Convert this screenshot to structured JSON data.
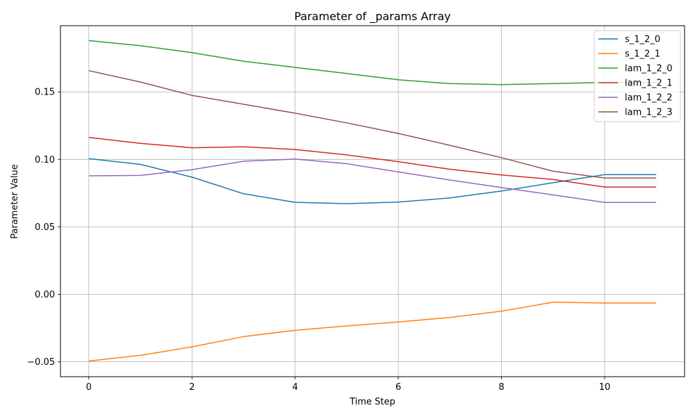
{
  "chart_data": {
    "type": "line",
    "title": "Parameter of _params Array",
    "xlabel": "Time Step",
    "ylabel": "Parameter Value",
    "xlim": [
      -0.55,
      11.55
    ],
    "ylim": [
      -0.061,
      0.199
    ],
    "x_ticks": [
      0,
      2,
      4,
      6,
      8,
      10
    ],
    "x_tick_labels": [
      "0",
      "2",
      "4",
      "6",
      "8",
      "10"
    ],
    "y_ticks": [
      -0.05,
      0.0,
      0.05,
      0.1,
      0.15
    ],
    "y_tick_labels": [
      "−0.05",
      "0.00",
      "0.05",
      "0.10",
      "0.15"
    ],
    "grid": true,
    "legend_position": "top-right",
    "x": [
      0,
      1,
      2,
      3,
      4,
      5,
      6,
      7,
      8,
      9,
      10,
      11
    ],
    "series": [
      {
        "name": "s_1_2_0",
        "color": "#1f77b4",
        "values": [
          0.1005,
          0.0963,
          0.0868,
          0.0745,
          0.0682,
          0.0672,
          0.0684,
          0.0714,
          0.0765,
          0.0827,
          0.0887,
          0.0887
        ]
      },
      {
        "name": "s_1_2_1",
        "color": "#ff7f0e",
        "values": [
          -0.0494,
          -0.0452,
          -0.0389,
          -0.0313,
          -0.0266,
          -0.0234,
          -0.0205,
          -0.0171,
          -0.0125,
          -0.0058,
          -0.0064,
          -0.0064
        ]
      },
      {
        "name": "lam_1_2_0",
        "color": "#2ca02c",
        "values": [
          0.188,
          0.1842,
          0.1791,
          0.1727,
          0.1681,
          0.1636,
          0.159,
          0.1561,
          0.1554,
          0.1561,
          0.157,
          0.157
        ]
      },
      {
        "name": "lam_1_2_1",
        "color": "#d62728",
        "values": [
          0.1162,
          0.1119,
          0.1086,
          0.1093,
          0.1073,
          0.1033,
          0.0983,
          0.0927,
          0.0884,
          0.0851,
          0.0795,
          0.0795
        ]
      },
      {
        "name": "lam_1_2_2",
        "color": "#9467bd",
        "values": [
          0.0878,
          0.0881,
          0.0924,
          0.0986,
          0.1002,
          0.0968,
          0.0907,
          0.0847,
          0.0791,
          0.0737,
          0.0681,
          0.0681
        ]
      },
      {
        "name": "lam_1_2_3",
        "color": "#8c564b",
        "values": [
          0.1657,
          0.1573,
          0.1474,
          0.1408,
          0.1342,
          0.127,
          0.1192,
          0.1104,
          0.1013,
          0.0912,
          0.0862,
          0.0862
        ]
      }
    ]
  }
}
